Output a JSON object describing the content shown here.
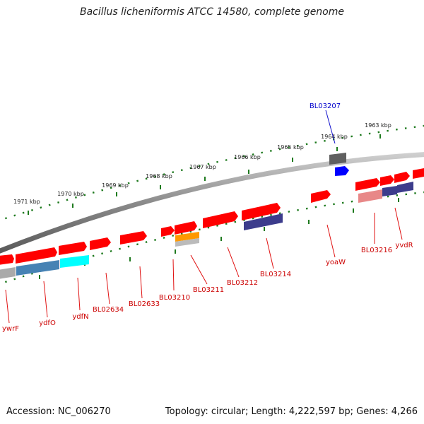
{
  "title": "Bacillus licheniformis ATCC 14580, complete genome",
  "footer": {
    "accession": "Accession: NC_006270",
    "info": "Topology: circular; Length: 4,222,597 bp; Genes: 4,266"
  },
  "scale_labels": [
    "1963 kbp",
    "1964 kbp",
    "1965 kbp",
    "1966 kbp",
    "1967 kbp",
    "1968 kbp",
    "1969 kbp",
    "1970 kbp",
    "1971 kbp"
  ],
  "gene_labels": [
    "BL03207",
    "BL03216",
    "yvdR",
    "yoaW",
    "BL03214",
    "BL03212",
    "BL03211",
    "BL03210",
    "BL02633",
    "BL02634",
    "ydfN",
    "ydfO",
    "ywrF"
  ],
  "colors": {
    "gene": "#ff0000",
    "label_red": "#cc0000",
    "label_blue": "#0000cc",
    "backbone": "#808080",
    "scale_ticks": "#1e7a1e",
    "gene_blue": "#0000ff",
    "gene_darkgrey": "#606060",
    "gene_orange": "#ff9900",
    "gene_navy": "#3c3c8c",
    "gene_steel": "#4682b4",
    "gene_cyan": "#00ffff",
    "gene_pink": "#e88888",
    "gene_grey": "#aaaaaa"
  }
}
